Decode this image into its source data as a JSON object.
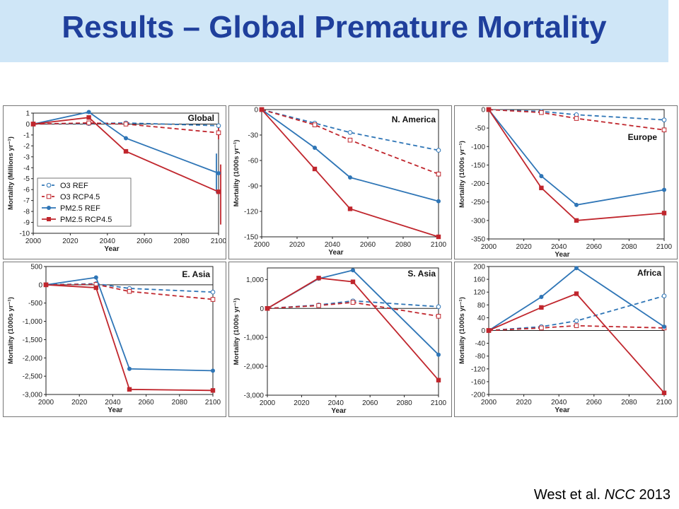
{
  "header": {
    "title": "Results – Global Premature Mortality"
  },
  "citation": {
    "author": "West et al.",
    "journal": "NCC",
    "year": "2013"
  },
  "legend_entries": [
    "O3 REF",
    "O3 RCP4.5",
    "PM2.5 REF",
    "PM2.5 RCP4.5"
  ],
  "colors": {
    "blue": "#2e75b6",
    "red": "#c0262d",
    "title_blue": "#1f3f9c",
    "bar_bg": "#cfe6f7"
  },
  "chart_data": [
    {
      "type": "line",
      "title": "Global",
      "xlabel": "Year",
      "ylabel": "Mortality (Millions yr⁻¹)",
      "x": [
        2000,
        2030,
        2050,
        2100
      ],
      "xlim": [
        2000,
        2100
      ],
      "ylim": [
        -10,
        1
      ],
      "yticks": [
        1,
        0,
        -1,
        -2,
        -3,
        -4,
        -5,
        -6,
        -7,
        -8,
        -9,
        -10
      ],
      "ytick_labels": [
        "1",
        "0",
        "-1",
        "-2",
        "-3",
        "-4",
        "-5",
        "-6",
        "-7",
        "-8",
        "-9",
        "-10"
      ],
      "xticks": [
        2000,
        2020,
        2040,
        2060,
        2080,
        2100
      ],
      "legend": "bottom-left",
      "series": [
        {
          "name": "O3 REF",
          "values": [
            0,
            0.05,
            0.1,
            -0.15
          ]
        },
        {
          "name": "O3 RCP4.5",
          "values": [
            0,
            0.1,
            0,
            -0.8
          ]
        },
        {
          "name": "PM2.5 REF",
          "values": [
            0,
            1.1,
            -1.3,
            -4.5
          ]
        },
        {
          "name": "PM2.5 RCP4.5",
          "values": [
            0,
            0.6,
            -2.5,
            -6.2
          ]
        }
      ],
      "error_bars": [
        {
          "series": "O3 RCP4.5",
          "x": 2100,
          "low": -1.4,
          "high": -0.3
        },
        {
          "series": "PM2.5 REF",
          "x": 2100,
          "low": -6.3,
          "high": -2.7
        },
        {
          "series": "PM2.5 RCP4.5",
          "x": 2100,
          "low": -9.2,
          "high": -3.7
        }
      ]
    },
    {
      "type": "line",
      "title": "N. America",
      "xlabel": "Year",
      "ylabel": "Mortality (1000s yr⁻¹)",
      "x": [
        2000,
        2030,
        2050,
        2100
      ],
      "xlim": [
        2000,
        2100
      ],
      "ylim": [
        -150,
        0
      ],
      "yticks": [
        0,
        -30,
        -60,
        -90,
        -120,
        -150
      ],
      "ytick_labels": [
        "0",
        "-30",
        "-60",
        "-90",
        "-120",
        "-150"
      ],
      "xticks": [
        2000,
        2020,
        2040,
        2060,
        2080,
        2100
      ],
      "series": [
        {
          "name": "O3 REF",
          "values": [
            0,
            -16,
            -27,
            -48
          ]
        },
        {
          "name": "O3 RCP4.5",
          "values": [
            0,
            -18,
            -36,
            -76
          ]
        },
        {
          "name": "PM2.5 REF",
          "values": [
            0,
            -45,
            -80,
            -108
          ]
        },
        {
          "name": "PM2.5 RCP4.5",
          "values": [
            0,
            -70,
            -117,
            -150
          ]
        }
      ]
    },
    {
      "type": "line",
      "title": "Europe",
      "xlabel": "Year",
      "ylabel": "Mortality (1000s yr⁻¹)",
      "x": [
        2000,
        2030,
        2050,
        2100
      ],
      "xlim": [
        2000,
        2100
      ],
      "ylim": [
        -350,
        0
      ],
      "yticks": [
        0,
        -50,
        -100,
        -150,
        -200,
        -250,
        -300,
        -350
      ],
      "ytick_labels": [
        "0",
        "-50",
        "-100",
        "-150",
        "-200",
        "-250",
        "-300",
        "-350"
      ],
      "xticks": [
        2000,
        2020,
        2040,
        2060,
        2080,
        2100
      ],
      "series": [
        {
          "name": "O3 REF",
          "values": [
            0,
            -5,
            -14,
            -28
          ]
        },
        {
          "name": "O3 RCP4.5",
          "values": [
            0,
            -8,
            -24,
            -55
          ]
        },
        {
          "name": "PM2.5 REF",
          "values": [
            0,
            -180,
            -258,
            -217
          ]
        },
        {
          "name": "PM2.5 RCP4.5",
          "values": [
            0,
            -212,
            -300,
            -280
          ]
        }
      ]
    },
    {
      "type": "line",
      "title": "E. Asia",
      "xlabel": "Year",
      "ylabel": "Mortality (1000s yr⁻¹)",
      "x": [
        2000,
        2030,
        2050,
        2100
      ],
      "xlim": [
        2000,
        2100
      ],
      "ylim": [
        -3000,
        500
      ],
      "yticks": [
        500,
        0,
        -500,
        -1000,
        -1500,
        -2000,
        -2500,
        -3000
      ],
      "ytick_labels": [
        "500",
        "0",
        "-500",
        "-1,000",
        "-1,500",
        "-2,000",
        "-2,500",
        "-3,000"
      ],
      "xticks": [
        2000,
        2020,
        2040,
        2060,
        2080,
        2100
      ],
      "series": [
        {
          "name": "O3 REF",
          "values": [
            0,
            30,
            -100,
            -200
          ]
        },
        {
          "name": "O3 RCP4.5",
          "values": [
            0,
            10,
            -180,
            -400
          ]
        },
        {
          "name": "PM2.5 REF",
          "values": [
            0,
            200,
            -2300,
            -2350
          ]
        },
        {
          "name": "PM2.5 RCP4.5",
          "values": [
            0,
            -80,
            -2860,
            -2890
          ]
        }
      ]
    },
    {
      "type": "line",
      "title": "S. Asia",
      "xlabel": "Year",
      "ylabel": "Mortality (1000s yr⁻¹)",
      "x": [
        2000,
        2030,
        2050,
        2100
      ],
      "xlim": [
        2000,
        2100
      ],
      "ylim": [
        -3000,
        1400
      ],
      "yticks": [
        1000,
        0,
        -1000,
        -2000,
        -3000
      ],
      "ytick_labels": [
        "1,000",
        "0",
        "-1,000",
        "-2,000",
        "-3,000"
      ],
      "xticks": [
        2000,
        2020,
        2040,
        2060,
        2080,
        2100
      ],
      "series": [
        {
          "name": "O3 REF",
          "values": [
            0,
            120,
            260,
            60
          ]
        },
        {
          "name": "O3 RCP4.5",
          "values": [
            0,
            100,
            210,
            -270
          ]
        },
        {
          "name": "PM2.5 REF",
          "values": [
            0,
            1030,
            1320,
            -1600
          ]
        },
        {
          "name": "PM2.5 RCP4.5",
          "values": [
            0,
            1050,
            920,
            -2480
          ]
        }
      ]
    },
    {
      "type": "line",
      "title": "Africa",
      "xlabel": "Year",
      "ylabel": "Mortality (1000s yr⁻¹)",
      "x": [
        2000,
        2030,
        2050,
        2100
      ],
      "xlim": [
        2000,
        2100
      ],
      "ylim": [
        -200,
        200
      ],
      "yticks": [
        200,
        160,
        120,
        80,
        40,
        0,
        -40,
        -80,
        -120,
        -160,
        -200
      ],
      "ytick_labels": [
        "200",
        "160",
        "120",
        "80",
        "40",
        "0",
        "-40",
        "-80",
        "-120",
        "-160",
        "-200"
      ],
      "xticks": [
        2000,
        2020,
        2040,
        2060,
        2080,
        2100
      ],
      "series": [
        {
          "name": "O3 REF",
          "values": [
            0,
            12,
            30,
            108
          ]
        },
        {
          "name": "O3 RCP4.5",
          "values": [
            0,
            8,
            15,
            8
          ]
        },
        {
          "name": "PM2.5 REF",
          "values": [
            0,
            105,
            195,
            12
          ]
        },
        {
          "name": "PM2.5 RCP4.5",
          "values": [
            0,
            72,
            115,
            -195
          ]
        }
      ]
    }
  ]
}
